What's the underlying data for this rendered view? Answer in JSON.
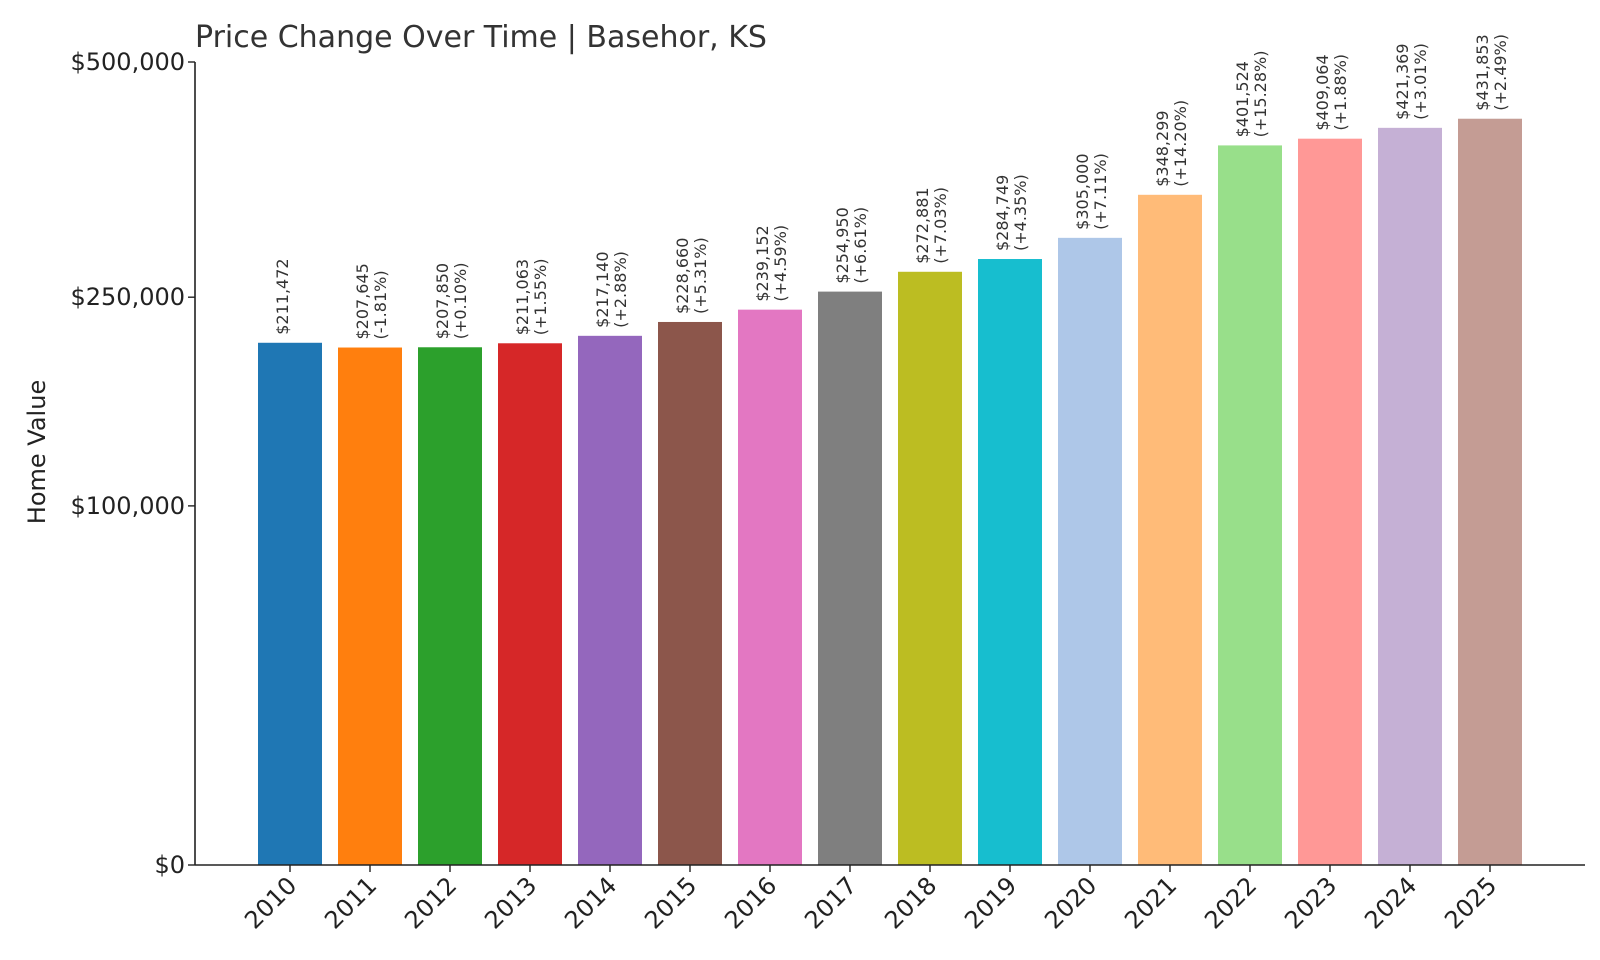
{
  "chart_data": {
    "type": "bar",
    "title": "Price Change Over Time | Basehor, KS",
    "ylabel": "Home Value",
    "xlabel": "",
    "categories": [
      "2010",
      "2011",
      "2012",
      "2013",
      "2014",
      "2015",
      "2016",
      "2017",
      "2018",
      "2019",
      "2020",
      "2021",
      "2022",
      "2023",
      "2024",
      "2025"
    ],
    "values": [
      211472,
      207645,
      207850,
      211063,
      217140,
      228660,
      239152,
      254950,
      272881,
      284749,
      305000,
      348299,
      401524,
      409064,
      421369,
      431853
    ],
    "value_labels": [
      "$211,472",
      "$207,645",
      "$207,850",
      "$211,063",
      "$217,140",
      "$228,660",
      "$239,152",
      "$254,950",
      "$272,881",
      "$284,749",
      "$305,000",
      "$348,299",
      "$401,524",
      "$409,064",
      "$421,369",
      "$431,853"
    ],
    "change_labels": [
      "",
      "(-1.81%)",
      "(+0.10%)",
      "(+1.55%)",
      "(+2.88%)",
      "(+5.31%)",
      "(+4.59%)",
      "(+6.61%)",
      "(+7.03%)",
      "(+4.35%)",
      "(+7.11%)",
      "(+14.20%)",
      "(+15.28%)",
      "(+1.88%)",
      "(+3.01%)",
      "(+2.49%)"
    ],
    "colors": [
      "#1f77b4",
      "#ff7f0e",
      "#2ca02c",
      "#d62728",
      "#9467bd",
      "#8c564b",
      "#e377c2",
      "#7f7f7f",
      "#bcbd22",
      "#17becf",
      "#aec7e8",
      "#ffbb78",
      "#98df8a",
      "#ff9896",
      "#c5b0d5",
      "#c49c94"
    ],
    "yticks": [
      0,
      100000,
      250000,
      500000
    ],
    "ytick_labels": [
      "$0",
      "$100,000",
      "$250,000",
      "$500,000"
    ],
    "ylim": [
      0,
      500000
    ],
    "y_scale": "square-root",
    "grid": false,
    "legend": "none"
  }
}
